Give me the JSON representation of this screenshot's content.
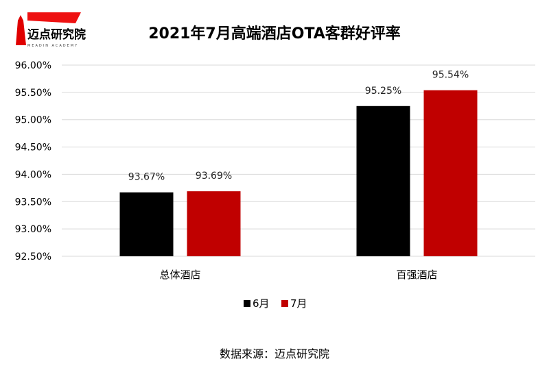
{
  "logo": {
    "name": "迈点研究院",
    "subtitle": "MEADIN ACADEMY"
  },
  "source_label": "数据来源：迈点研究院",
  "chart_data": {
    "type": "bar",
    "title": "2021年7月高端酒店OTA客群好评率",
    "categories": [
      "总体酒店",
      "百强酒店"
    ],
    "series": [
      {
        "name": "6月",
        "color": "#000000",
        "values": [
          93.67,
          95.25
        ],
        "labels": [
          "93.67%",
          "95.25%"
        ]
      },
      {
        "name": "7月",
        "color": "#C00000",
        "values": [
          93.69,
          95.54
        ],
        "labels": [
          "93.69%",
          "95.54%"
        ]
      }
    ],
    "ylim": [
      92.5,
      96.0
    ],
    "yticks": [
      92.5,
      93.0,
      93.5,
      94.0,
      94.5,
      95.0,
      95.5,
      96.0
    ],
    "ytick_labels": [
      "92.50%",
      "93.00%",
      "93.50%",
      "94.00%",
      "94.50%",
      "95.00%",
      "95.50%",
      "96.00%"
    ],
    "xlabel": "",
    "ylabel": "",
    "grid": true,
    "legend": "bottom-center"
  }
}
